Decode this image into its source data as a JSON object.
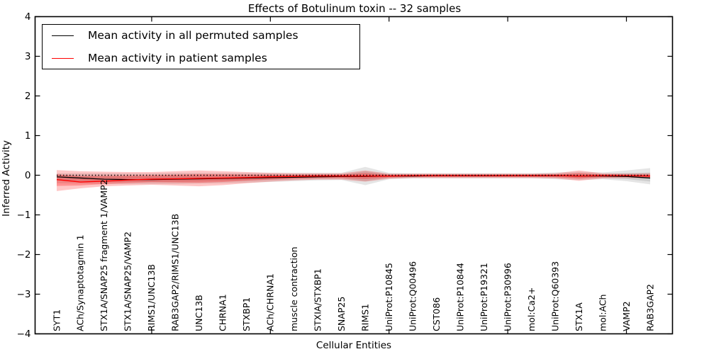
{
  "chart": {
    "title": "Effects of Botulinum toxin -- 32 samples",
    "xlabel": "Cellular Entities",
    "ylabel": "Inferred Activity"
  },
  "chart_data": {
    "type": "line",
    "title": "Effects of Botulinum toxin -- 32 samples",
    "xlabel": "Cellular Entities",
    "ylabel": "Inferred Activity",
    "ylim": [
      -4,
      4
    ],
    "yticks": [
      "4",
      "3",
      "2",
      "1",
      "0",
      "−1",
      "−2",
      "−3",
      "−4"
    ],
    "ytick_values": [
      4,
      3,
      2,
      1,
      0,
      -1,
      -2,
      -3,
      -4
    ],
    "grid": false,
    "legend_position": "upper left",
    "zero_line": {
      "style": "dotted",
      "color": "#000000",
      "y": 0
    },
    "major_xtick_indices": [
      4,
      9,
      14,
      19,
      24
    ],
    "categories": [
      "SYT1",
      "ACh/Synaptotagmin 1",
      "STX1A/SNAP25 fragment 1/VAMP2",
      "STX1A/SNAP25/VAMP2",
      "RIMS1/UNC13B",
      "RAB3GAP2/RIMS1/UNC13B",
      "UNC13B",
      "CHRNA1",
      "STXBP1",
      "ACh/CHRNA1",
      "muscle contraction",
      "STXIA/STXBP1",
      "SNAP25",
      "RIMS1",
      "UniProt:P10845",
      "UniProt:Q00496",
      "CST086",
      "UniProt:P10844",
      "UniProt:P19321",
      "UniProt:P30996",
      "mol:Ca2+",
      "UniProt:Q60393",
      "STX1A",
      "mol:ACh",
      "VAMP2",
      "RAB3GAP2"
    ],
    "series": [
      {
        "name": "Mean activity in all permuted samples",
        "color": "#000000",
        "band_color_rgb": "0,0,0",
        "values": [
          -0.04,
          -0.07,
          -0.1,
          -0.11,
          -0.11,
          -0.1,
          -0.09,
          -0.08,
          -0.07,
          -0.06,
          -0.05,
          -0.04,
          -0.03,
          -0.03,
          -0.02,
          -0.02,
          -0.01,
          -0.01,
          -0.01,
          -0.01,
          -0.01,
          -0.01,
          -0.02,
          -0.02,
          -0.03,
          -0.07
        ],
        "band_hi": [
          0.05,
          0.05,
          0.05,
          0.05,
          0.05,
          0.06,
          0.06,
          0.06,
          0.06,
          0.06,
          0.06,
          0.06,
          0.06,
          0.21,
          0.06,
          0.05,
          0.05,
          0.05,
          0.05,
          0.05,
          0.05,
          0.07,
          0.09,
          0.07,
          0.12,
          0.18
        ],
        "band_lo": [
          -0.2,
          -0.21,
          -0.22,
          -0.22,
          -0.22,
          -0.22,
          -0.21,
          -0.2,
          -0.19,
          -0.17,
          -0.15,
          -0.13,
          -0.12,
          -0.25,
          -0.1,
          -0.08,
          -0.08,
          -0.08,
          -0.08,
          -0.08,
          -0.08,
          -0.1,
          -0.12,
          -0.1,
          -0.15,
          -0.23
        ]
      },
      {
        "name": "Mean activity in patient samples",
        "color": "#ff0000",
        "band_color_rgb": "255,0,0",
        "values": [
          -0.11,
          -0.17,
          -0.15,
          -0.12,
          -0.1,
          -0.09,
          -0.08,
          -0.07,
          -0.06,
          -0.04,
          -0.03,
          -0.02,
          -0.02,
          -0.02,
          -0.02,
          -0.01,
          -0.01,
          -0.01,
          -0.01,
          -0.01,
          -0.01,
          -0.01,
          -0.02,
          -0.01,
          -0.01,
          -0.02
        ],
        "band_hi": [
          0.13,
          0.1,
          0.09,
          0.08,
          0.08,
          0.1,
          0.12,
          0.1,
          0.08,
          0.06,
          0.05,
          0.05,
          0.05,
          0.12,
          0.04,
          0.04,
          0.04,
          0.04,
          0.04,
          0.04,
          0.04,
          0.05,
          0.12,
          0.05,
          0.04,
          0.05
        ],
        "band_lo": [
          -0.4,
          -0.33,
          -0.28,
          -0.26,
          -0.24,
          -0.26,
          -0.28,
          -0.25,
          -0.2,
          -0.16,
          -0.13,
          -0.11,
          -0.11,
          -0.16,
          -0.09,
          -0.07,
          -0.07,
          -0.07,
          -0.07,
          -0.07,
          -0.07,
          -0.08,
          -0.14,
          -0.08,
          -0.07,
          -0.08
        ]
      }
    ]
  }
}
